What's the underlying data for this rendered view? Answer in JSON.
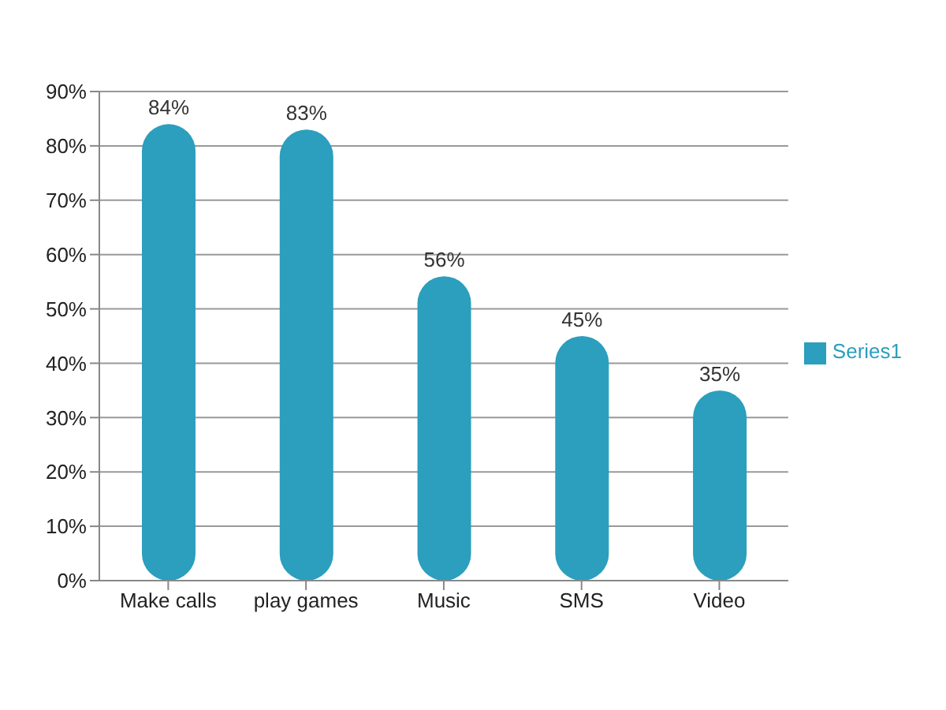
{
  "chart_data": {
    "type": "bar",
    "categories": [
      "Make calls",
      "play games",
      "Music",
      "SMS",
      "Video"
    ],
    "series": [
      {
        "name": "Series1",
        "color": "#2b9fbd",
        "values": [
          84,
          83,
          56,
          45,
          35
        ],
        "value_labels": [
          "84%",
          "83%",
          "56%",
          "45%",
          "35%"
        ]
      }
    ],
    "ylim": [
      0,
      90
    ],
    "yticks": [
      {
        "value": 0,
        "label": "0%"
      },
      {
        "value": 10,
        "label": "10%"
      },
      {
        "value": 20,
        "label": "20%"
      },
      {
        "value": 30,
        "label": "30%"
      },
      {
        "value": 40,
        "label": "40%"
      },
      {
        "value": 50,
        "label": "50%"
      },
      {
        "value": 60,
        "label": "60%"
      },
      {
        "value": 70,
        "label": "70%"
      },
      {
        "value": 80,
        "label": "80%"
      },
      {
        "value": 90,
        "label": "90%"
      }
    ],
    "grid": "y",
    "legend": "right"
  }
}
